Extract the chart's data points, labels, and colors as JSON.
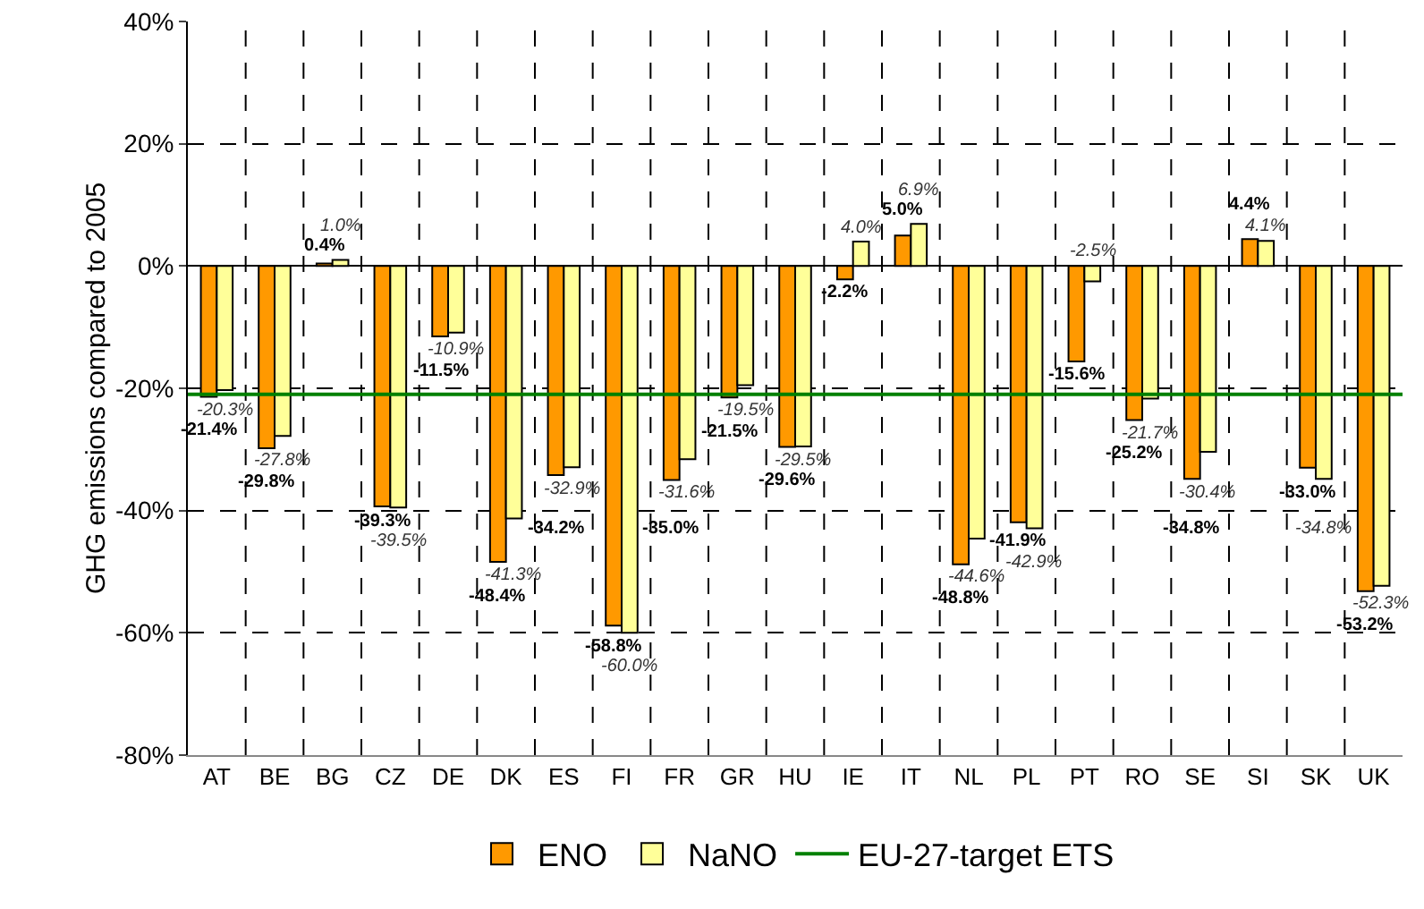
{
  "chart_data": {
    "type": "bar",
    "ylabel": "GHG emissions compared to 2005",
    "categories": [
      "AT",
      "BE",
      "BG",
      "CZ",
      "DE",
      "DK",
      "ES",
      "FI",
      "FR",
      "GR",
      "HU",
      "IE",
      "IT",
      "NL",
      "PL",
      "PT",
      "RO",
      "SE",
      "SI",
      "SK",
      "UK"
    ],
    "series": [
      {
        "name": "ENO",
        "color": "#ff9900",
        "values": [
          -21.4,
          -29.8,
          0.4,
          -39.3,
          -11.5,
          -48.4,
          -34.2,
          -58.8,
          -35.0,
          -21.5,
          -29.6,
          -2.2,
          5.0,
          -48.8,
          -41.9,
          -15.6,
          -25.2,
          -34.8,
          4.4,
          -33.0,
          -53.2
        ],
        "value_labels": [
          "-21.4%",
          "-29.8%",
          "0.4%",
          "-39.3%",
          "-11.5%",
          "-48.4%",
          "-34.2%",
          "-58.8%",
          "-35.0%",
          "-21.5%",
          "-29.6%",
          "-2.2%",
          "5.0%",
          "-48.8%",
          "-41.9%",
          "-15.6%",
          "-25.2%",
          "-34.8%",
          "4.4%",
          "-33.0%",
          "-53.2%"
        ]
      },
      {
        "name": "NaNO",
        "color": "#ffff99",
        "values": [
          -20.3,
          -27.8,
          1.0,
          -39.5,
          -10.9,
          -41.3,
          -32.9,
          -60.0,
          -31.6,
          -19.5,
          -29.5,
          4.0,
          6.9,
          -44.6,
          -42.9,
          -2.5,
          -21.7,
          -30.4,
          4.1,
          -34.8,
          -52.3
        ],
        "value_labels": [
          "-20.3%",
          "-27.8%",
          "1.0%",
          "-39.5%",
          "-10.9%",
          "-41.3%",
          "-32.9%",
          "-60.0%",
          "-31.6%",
          "-19.5%",
          "-29.5%",
          "4.0%",
          "6.9%",
          "-44.6%",
          "-42.9%",
          "-2.5%",
          "-21.7%",
          "-30.4%",
          "4.1%",
          "-34.8%",
          "-52.3%"
        ]
      }
    ],
    "ref_lines": [
      {
        "axis": "y",
        "value": -21,
        "label": "EU-27-target ETS",
        "color": "#008000",
        "line_style": "solid"
      }
    ],
    "ylim": [
      -80,
      40
    ],
    "yticks": [
      {
        "value": -80,
        "label": "-80%"
      },
      {
        "value": -60,
        "label": "-60%"
      },
      {
        "value": -40,
        "label": "-40%"
      },
      {
        "value": -20,
        "label": "-20%"
      },
      {
        "value": 0,
        "label": "0%"
      },
      {
        "value": 20,
        "label": "20%"
      },
      {
        "value": 40,
        "label": "40%"
      }
    ],
    "grid": true,
    "legend": "bottom"
  }
}
